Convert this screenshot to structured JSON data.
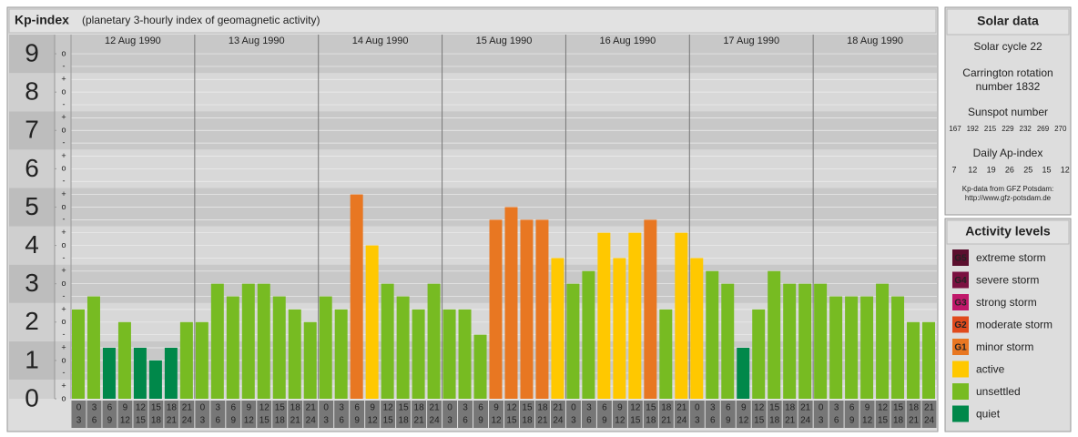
{
  "chart_data": {
    "type": "bar",
    "title": "Kp-index",
    "subtitle": "(planetary 3-hourly index of geomagnetic activity)",
    "groups": [
      "12 Aug 1990",
      "13 Aug 1990",
      "14 Aug 1990",
      "15 Aug 1990",
      "16 Aug 1990",
      "17 Aug 1990",
      "18 Aug 1990"
    ],
    "categories": [
      [
        "0",
        "3"
      ],
      [
        "3",
        "6"
      ],
      [
        "6",
        "9"
      ],
      [
        "9",
        "12"
      ],
      [
        "12",
        "15"
      ],
      [
        "15",
        "18"
      ],
      [
        "18",
        "21"
      ],
      [
        "21",
        "24"
      ],
      [
        "0",
        "3"
      ],
      [
        "3",
        "6"
      ],
      [
        "6",
        "9"
      ],
      [
        "9",
        "12"
      ],
      [
        "12",
        "15"
      ],
      [
        "15",
        "18"
      ],
      [
        "18",
        "21"
      ],
      [
        "21",
        "24"
      ],
      [
        "0",
        "3"
      ],
      [
        "3",
        "6"
      ],
      [
        "6",
        "9"
      ],
      [
        "9",
        "12"
      ],
      [
        "12",
        "15"
      ],
      [
        "15",
        "18"
      ],
      [
        "18",
        "21"
      ],
      [
        "21",
        "24"
      ],
      [
        "0",
        "3"
      ],
      [
        "3",
        "6"
      ],
      [
        "6",
        "9"
      ],
      [
        "9",
        "12"
      ],
      [
        "12",
        "15"
      ],
      [
        "15",
        "18"
      ],
      [
        "18",
        "21"
      ],
      [
        "21",
        "24"
      ],
      [
        "0",
        "3"
      ],
      [
        "3",
        "6"
      ],
      [
        "6",
        "9"
      ],
      [
        "9",
        "12"
      ],
      [
        "12",
        "15"
      ],
      [
        "15",
        "18"
      ],
      [
        "18",
        "21"
      ],
      [
        "21",
        "24"
      ],
      [
        "0",
        "3"
      ],
      [
        "3",
        "6"
      ],
      [
        "6",
        "9"
      ],
      [
        "9",
        "12"
      ],
      [
        "12",
        "15"
      ],
      [
        "15",
        "18"
      ],
      [
        "18",
        "21"
      ],
      [
        "21",
        "24"
      ],
      [
        "0",
        "3"
      ],
      [
        "3",
        "6"
      ],
      [
        "6",
        "9"
      ],
      [
        "9",
        "12"
      ],
      [
        "12",
        "15"
      ],
      [
        "15",
        "18"
      ],
      [
        "18",
        "21"
      ],
      [
        "21",
        "24"
      ]
    ],
    "values": [
      2.33,
      2.67,
      1.33,
      2,
      1.33,
      1,
      1.33,
      2,
      2,
      3,
      2.67,
      3,
      3,
      2.67,
      2.33,
      2,
      2.67,
      2.33,
      5.33,
      4,
      3,
      2.67,
      2.33,
      3,
      2.33,
      2.33,
      1.67,
      4.67,
      5,
      4.67,
      4.67,
      3.67,
      3,
      3.33,
      4.33,
      3.67,
      4.33,
      4.67,
      2.33,
      4.33,
      3.67,
      3.33,
      3,
      1.33,
      2.33,
      3.33,
      3,
      3,
      3,
      2.67,
      2.67,
      2.67,
      3,
      2.67,
      2,
      2
    ],
    "colors": [
      "#77bb22",
      "#77bb22",
      "#00884a",
      "#77bb22",
      "#00884a",
      "#00884a",
      "#00884a",
      "#77bb22",
      "#77bb22",
      "#77bb22",
      "#77bb22",
      "#77bb22",
      "#77bb22",
      "#77bb22",
      "#77bb22",
      "#77bb22",
      "#77bb22",
      "#77bb22",
      "#e87722",
      "#ffc800",
      "#77bb22",
      "#77bb22",
      "#77bb22",
      "#77bb22",
      "#77bb22",
      "#77bb22",
      "#77bb22",
      "#e87722",
      "#e87722",
      "#e87722",
      "#e87722",
      "#ffc800",
      "#77bb22",
      "#77bb22",
      "#ffc800",
      "#ffc800",
      "#ffc800",
      "#e87722",
      "#77bb22",
      "#ffc800",
      "#ffc800",
      "#77bb22",
      "#77bb22",
      "#00884a",
      "#77bb22",
      "#77bb22",
      "#77bb22",
      "#77bb22",
      "#77bb22",
      "#77bb22",
      "#77bb22",
      "#77bb22",
      "#77bb22",
      "#77bb22",
      "#77bb22",
      "#77bb22"
    ],
    "ylim": [
      0,
      9.5
    ],
    "yticks": [
      0,
      1,
      2,
      3,
      4,
      5,
      6,
      7,
      8,
      9
    ],
    "minor_yticks": [
      {
        "value": 0,
        "label": "o"
      },
      {
        "value": 0.33,
        "label": "+"
      },
      {
        "value": 0.67,
        "label": "-"
      },
      {
        "value": 1,
        "label": "o"
      },
      {
        "value": 1.33,
        "label": "+"
      },
      {
        "value": 1.67,
        "label": "-"
      },
      {
        "value": 2,
        "label": "o"
      },
      {
        "value": 2.33,
        "label": "+"
      },
      {
        "value": 2.67,
        "label": "-"
      },
      {
        "value": 3,
        "label": "o"
      },
      {
        "value": 3.33,
        "label": "+"
      },
      {
        "value": 3.67,
        "label": "-"
      },
      {
        "value": 4,
        "label": "o"
      },
      {
        "value": 4.33,
        "label": "+"
      },
      {
        "value": 4.67,
        "label": "-"
      },
      {
        "value": 5,
        "label": "o"
      },
      {
        "value": 5.33,
        "label": "+"
      },
      {
        "value": 5.67,
        "label": "-"
      },
      {
        "value": 6,
        "label": "o"
      },
      {
        "value": 6.33,
        "label": "+"
      },
      {
        "value": 6.67,
        "label": "-"
      },
      {
        "value": 7,
        "label": "o"
      },
      {
        "value": 7.33,
        "label": "+"
      },
      {
        "value": 7.67,
        "label": "-"
      },
      {
        "value": 8,
        "label": "o"
      },
      {
        "value": 8.33,
        "label": "+"
      },
      {
        "value": 8.67,
        "label": "-"
      },
      {
        "value": 9,
        "label": "o"
      }
    ],
    "grid": true
  },
  "solar_data": {
    "title": "Solar data",
    "cycle": "Solar cycle 22",
    "rotation": [
      "Carrington rotation",
      "number 1832"
    ],
    "sunspot_title": "Sunspot number",
    "sunspot_numbers": [
      167,
      192,
      215,
      229,
      232,
      269,
      270
    ],
    "ap_title": "Daily Ap-index",
    "ap_index": [
      7,
      12,
      19,
      26,
      25,
      15,
      12
    ],
    "source": [
      "Kp-data from GFZ Potsdam:",
      "http://www.gfz-potsdam.de"
    ]
  },
  "legend": {
    "title": "Activity levels",
    "items": [
      {
        "badge": "G5",
        "name": "extreme storm",
        "color": "#5b0f2e"
      },
      {
        "badge": "G4",
        "name": "severe storm",
        "color": "#7a1040"
      },
      {
        "badge": "G3",
        "name": "strong storm",
        "color": "#c0186a"
      },
      {
        "badge": "G2",
        "name": "moderate storm",
        "color": "#e04a1c"
      },
      {
        "badge": "G1",
        "name": "minor storm",
        "color": "#e87722"
      },
      {
        "name": "active",
        "color": "#ffc800"
      },
      {
        "name": "unsettled",
        "color": "#77bb22"
      },
      {
        "name": "quiet",
        "color": "#00884a"
      }
    ]
  }
}
